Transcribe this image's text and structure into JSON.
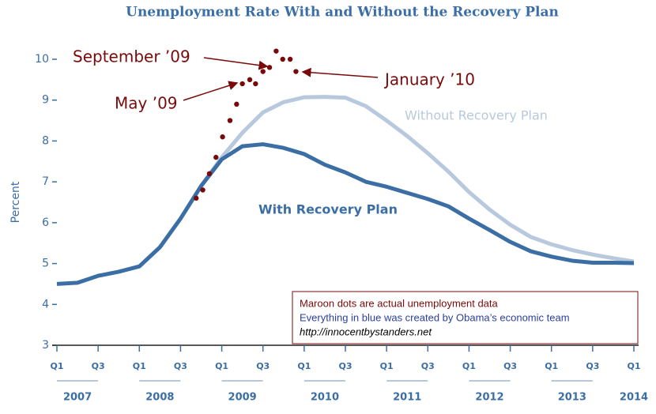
{
  "chart_data": {
    "type": "line",
    "title": "Unemployment Rate With and Without the Recovery Plan",
    "ylabel": "Percent",
    "x": [
      2007,
      2007.25,
      2007.5,
      2007.75,
      2008,
      2008.25,
      2008.5,
      2008.75,
      2009,
      2009.25,
      2009.5,
      2009.75,
      2010,
      2010.25,
      2010.5,
      2010.75,
      2011,
      2011.25,
      2011.5,
      2011.75,
      2012,
      2012.25,
      2012.5,
      2012.75,
      2013,
      2013.25,
      2013.5,
      2013.75,
      2014
    ],
    "series": [
      {
        "name": "Without Recovery Plan",
        "color": "#b8c9de",
        "values": [
          null,
          null,
          null,
          null,
          null,
          null,
          null,
          6.9,
          7.6,
          8.2,
          8.7,
          8.95,
          9.07,
          9.08,
          9.06,
          8.85,
          8.5,
          8.12,
          7.7,
          7.25,
          6.75,
          6.32,
          5.95,
          5.65,
          5.47,
          5.33,
          5.22,
          5.13,
          5.05
        ]
      },
      {
        "name": "With Recovery Plan",
        "color": "#3b6ea5",
        "values": [
          4.5,
          4.53,
          4.7,
          4.8,
          4.93,
          5.4,
          6.1,
          6.9,
          7.55,
          7.87,
          7.92,
          7.83,
          7.68,
          7.42,
          7.23,
          7.0,
          6.88,
          6.73,
          6.58,
          6.4,
          6.1,
          5.82,
          5.53,
          5.3,
          5.17,
          5.07,
          5.02,
          5.02,
          5.01
        ]
      }
    ],
    "actual": {
      "color": "#7a0a0a",
      "x": [
        2008.69,
        2008.77,
        2008.85,
        2008.93,
        2009.01,
        2009.1,
        2009.18,
        2009.25,
        2009.34,
        2009.41,
        2009.5,
        2009.58,
        2009.66,
        2009.74,
        2009.83,
        2009.9
      ],
      "values": [
        6.6,
        6.8,
        7.2,
        7.6,
        8.1,
        8.5,
        8.9,
        9.4,
        9.5,
        9.4,
        9.7,
        9.8,
        10.2,
        10.0,
        10.0,
        9.7
      ]
    },
    "annotations": [
      "September ’09",
      "May ’09",
      "January ’10"
    ],
    "note": [
      "Maroon dots are actual unemployment data",
      "Everything in blue was created by Obama’s economic team",
      "http://innocentbystanders.net"
    ],
    "xlim": [
      2007,
      2014
    ],
    "ylim": [
      3,
      10
    ],
    "yticks": [
      3,
      4,
      5,
      6,
      7,
      8,
      9,
      10
    ],
    "xticks": [
      {
        "value": 2007,
        "label": "Q1"
      },
      {
        "value": 2007.5,
        "label": "Q3"
      },
      {
        "value": 2008,
        "label": "Q1"
      },
      {
        "value": 2008.5,
        "label": "Q3"
      },
      {
        "value": 2009,
        "label": "Q1"
      },
      {
        "value": 2009.5,
        "label": "Q3"
      },
      {
        "value": 2010,
        "label": "Q1"
      },
      {
        "value": 2010.5,
        "label": "Q3"
      },
      {
        "value": 2011,
        "label": "Q1"
      },
      {
        "value": 2011.5,
        "label": "Q3"
      },
      {
        "value": 2012,
        "label": "Q1"
      },
      {
        "value": 2012.5,
        "label": "Q3"
      },
      {
        "value": 2013,
        "label": "Q1"
      },
      {
        "value": 2013.5,
        "label": "Q3"
      },
      {
        "value": 2014,
        "label": "Q1"
      }
    ],
    "years": [
      "2007",
      "2008",
      "2009",
      "2010",
      "2011",
      "2012",
      "2013",
      "2014"
    ]
  }
}
